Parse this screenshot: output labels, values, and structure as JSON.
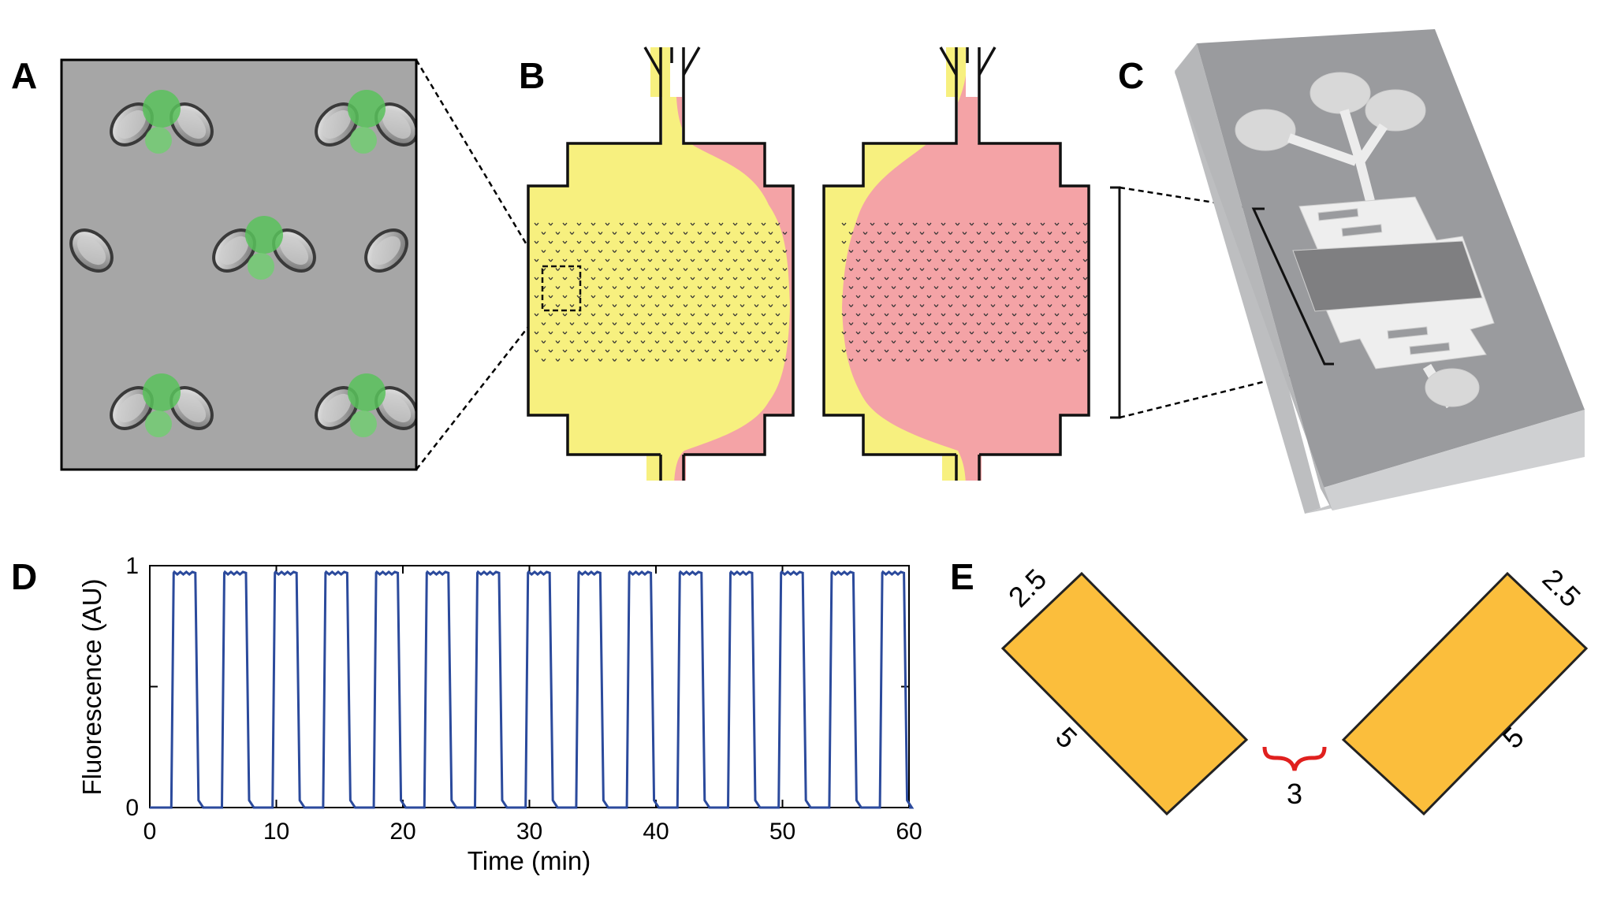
{
  "panels": {
    "a": "A",
    "b": "B",
    "c": "C",
    "d": "D",
    "e": "E"
  },
  "colors": {
    "yellow": "#f7f07f",
    "pink": "#f4a3a6",
    "trace": "#2b4a9c",
    "rect": "#fbbe3c",
    "brace": "#e0201e",
    "chip": "#9a9b9e"
  },
  "chart_data": {
    "type": "line",
    "xlabel": "Time (min)",
    "ylabel": "Fluorescence (AU)",
    "xlim": [
      0,
      60
    ],
    "ylim": [
      0,
      1
    ],
    "xticks": [
      "0",
      "10",
      "20",
      "30",
      "40",
      "50",
      "60"
    ],
    "yticks": [
      "0",
      "1"
    ],
    "period_min": 4,
    "pulse_high": 0.97,
    "pulses": [
      {
        "on": 1.7,
        "off": 3.6
      },
      {
        "on": 5.7,
        "off": 7.6
      },
      {
        "on": 9.7,
        "off": 11.6
      },
      {
        "on": 13.7,
        "off": 15.6
      },
      {
        "on": 17.7,
        "off": 19.6
      },
      {
        "on": 21.7,
        "off": 23.6
      },
      {
        "on": 25.7,
        "off": 27.6
      },
      {
        "on": 29.7,
        "off": 31.6
      },
      {
        "on": 33.7,
        "off": 35.6
      },
      {
        "on": 37.7,
        "off": 39.6
      },
      {
        "on": 41.7,
        "off": 43.6
      },
      {
        "on": 45.7,
        "off": 47.6
      },
      {
        "on": 49.7,
        "off": 51.6
      },
      {
        "on": 53.7,
        "off": 55.6
      },
      {
        "on": 57.7,
        "off": 59.6
      }
    ]
  },
  "dimensions": {
    "left_width": "2.5",
    "left_length": "5",
    "gap": "3",
    "right_width": "2.5",
    "right_length": "5"
  }
}
